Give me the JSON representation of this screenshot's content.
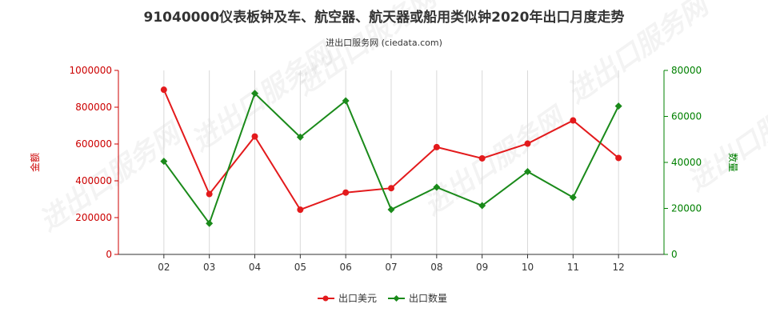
{
  "chart_data": {
    "type": "line",
    "title": "91040000仪表板钟及车、航空器、航天器或船用类似钟2020年出口月度走势",
    "subtitle": "进出口服务网 (ciedata.com)",
    "categories": [
      "02",
      "03",
      "04",
      "05",
      "06",
      "07",
      "08",
      "09",
      "10",
      "11",
      "12"
    ],
    "series": [
      {
        "name": "出口美元",
        "axis": "left",
        "color": "#e31a1c",
        "values": [
          895000,
          328000,
          641000,
          243000,
          336000,
          360000,
          583000,
          522000,
          602000,
          728000,
          524000
        ]
      },
      {
        "name": "出口数量",
        "axis": "right",
        "color": "#1a8a1a",
        "values": [
          40500,
          13500,
          70000,
          51000,
          66800,
          19500,
          29200,
          21200,
          36000,
          24800,
          64500
        ]
      }
    ],
    "ylabel_left": "金额",
    "ylabel_right": "数量",
    "ylim_left": [
      0,
      1000000
    ],
    "ylim_right": [
      0,
      80000
    ],
    "yticks_left": [
      0,
      200000,
      400000,
      600000,
      800000,
      1000000
    ],
    "yticks_right": [
      0,
      20000,
      40000,
      60000,
      80000
    ],
    "grid": "vertical",
    "legend_position": "bottom-center"
  },
  "watermark_text": "进出口服务网"
}
